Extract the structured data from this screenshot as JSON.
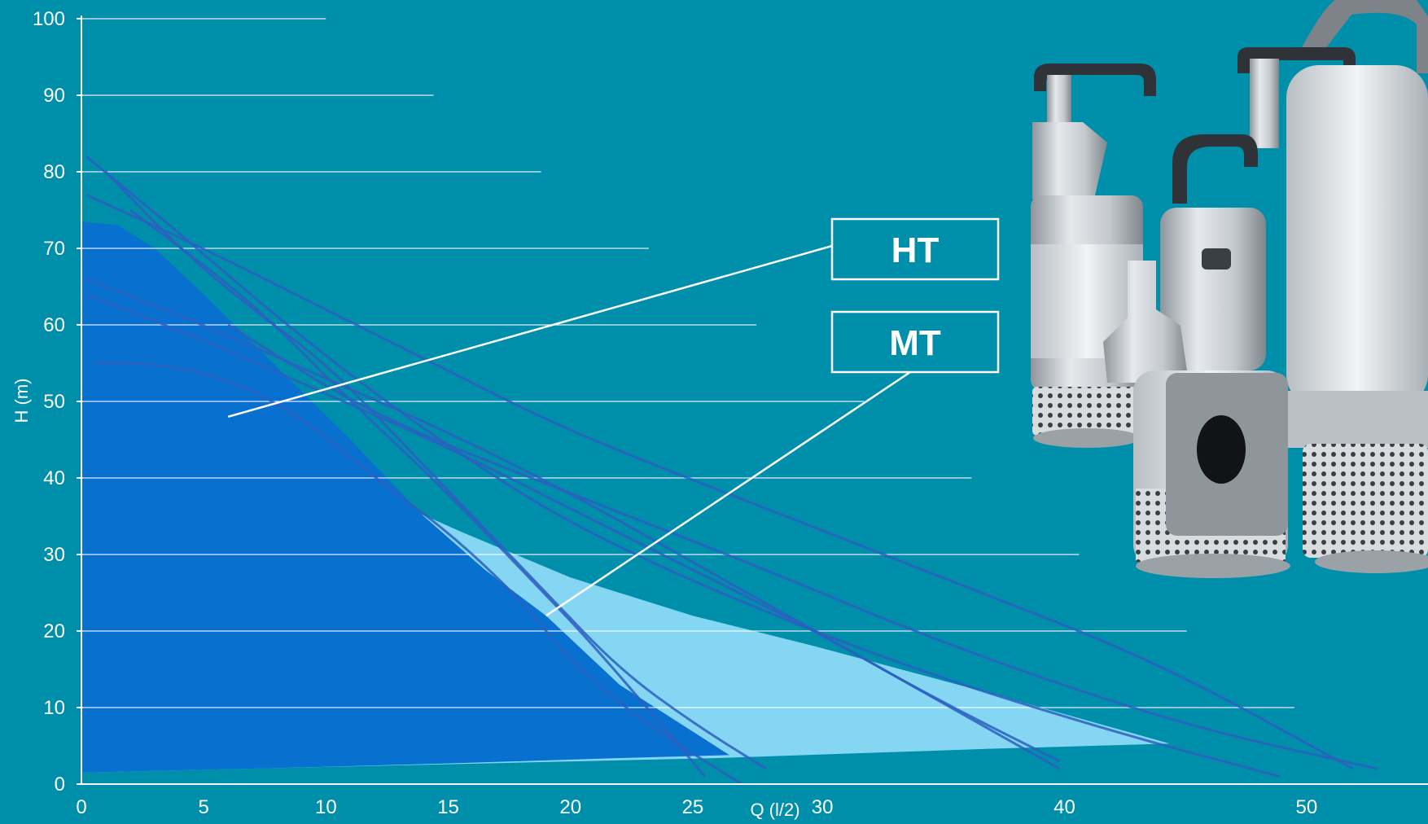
{
  "chart_data": {
    "type": "area",
    "xlabel": "Q (l/2)",
    "ylabel": "H (m)",
    "xlim": [
      0,
      54
    ],
    "ylim": [
      0,
      100
    ],
    "x_ticks": [
      "0",
      "5",
      "10",
      "15",
      "20",
      "25",
      "30",
      "40",
      "50"
    ],
    "y_ticks": [
      "0",
      "10",
      "20",
      "30",
      "40",
      "50",
      "60",
      "70",
      "80",
      "90",
      "100"
    ],
    "grid": true,
    "regions": [
      {
        "name": "MT",
        "color": "#84d6f2",
        "x": [
          0,
          3,
          8,
          12,
          15.5,
          20,
          25,
          30,
          37,
          44.5,
          37,
          26,
          15,
          8,
          0
        ],
        "y": [
          51,
          48,
          43,
          38,
          33,
          27,
          22,
          18,
          12,
          5.3,
          4.6,
          3.4,
          2.6,
          2.1,
          1.5
        ]
      },
      {
        "name": "HT",
        "color": "#0870cf",
        "x": [
          0,
          1.5,
          3,
          5,
          8,
          11,
          14,
          16.5,
          19,
          22,
          26.5,
          22,
          15,
          8,
          0
        ],
        "y": [
          73.5,
          73,
          70,
          64,
          54.5,
          45,
          35,
          28,
          22,
          13,
          3.8,
          3.4,
          2.7,
          2.1,
          1.5
        ]
      }
    ],
    "pump_curves": [
      {
        "x": [
          0.2,
          4,
          8,
          12,
          16,
          20,
          26,
          34,
          42,
          49
        ],
        "y": [
          82,
          72,
          61,
          51,
          42,
          34,
          25,
          15,
          7,
          1
        ]
      },
      {
        "x": [
          0.2,
          5,
          10,
          15,
          20,
          28,
          36,
          44,
          52
        ],
        "y": [
          77,
          70,
          62,
          54,
          46,
          36,
          26,
          16,
          2
        ]
      },
      {
        "x": [
          0.2,
          5,
          10,
          15,
          20,
          25,
          30,
          35,
          40
        ],
        "y": [
          66,
          60,
          53,
          46,
          38,
          29,
          20,
          11,
          2
        ]
      },
      {
        "x": [
          0.2,
          5,
          10,
          15,
          20,
          25,
          30,
          35,
          40
        ],
        "y": [
          64,
          58,
          51,
          44,
          36,
          28,
          20,
          11,
          3
        ]
      },
      {
        "x": [
          2,
          7,
          11,
          15,
          18,
          21,
          25.5
        ],
        "y": [
          75,
          63,
          50,
          38,
          28,
          18,
          1
        ]
      },
      {
        "x": [
          6,
          12,
          20,
          28,
          34,
          40,
          46,
          53
        ],
        "y": [
          60,
          48,
          38,
          28,
          20,
          13,
          7,
          2
        ]
      },
      {
        "x": [
          0.5,
          3,
          6,
          9,
          12,
          15,
          18,
          20,
          23,
          27
        ],
        "y": [
          55,
          55,
          53,
          48,
          40,
          33,
          24,
          16,
          8,
          0
        ]
      },
      {
        "x": [
          1,
          4,
          7,
          10,
          13,
          16,
          19,
          22,
          25,
          28
        ],
        "y": [
          80,
          70,
          62,
          55,
          45,
          35,
          25,
          15,
          8,
          2
        ]
      }
    ],
    "annotations": [
      {
        "label": "HT",
        "target": [
          6,
          48
        ]
      },
      {
        "label": "MT",
        "target": [
          19,
          22
        ]
      }
    ]
  },
  "colors": {
    "background": "#008fab",
    "grid": "#ffffff",
    "curve": "#2b5fbf",
    "ht_fill": "#0870cf",
    "mt_fill": "#84d6f2",
    "pump_silver": "#c9cdd1"
  },
  "decor": {
    "image": "pump-product-photo"
  }
}
